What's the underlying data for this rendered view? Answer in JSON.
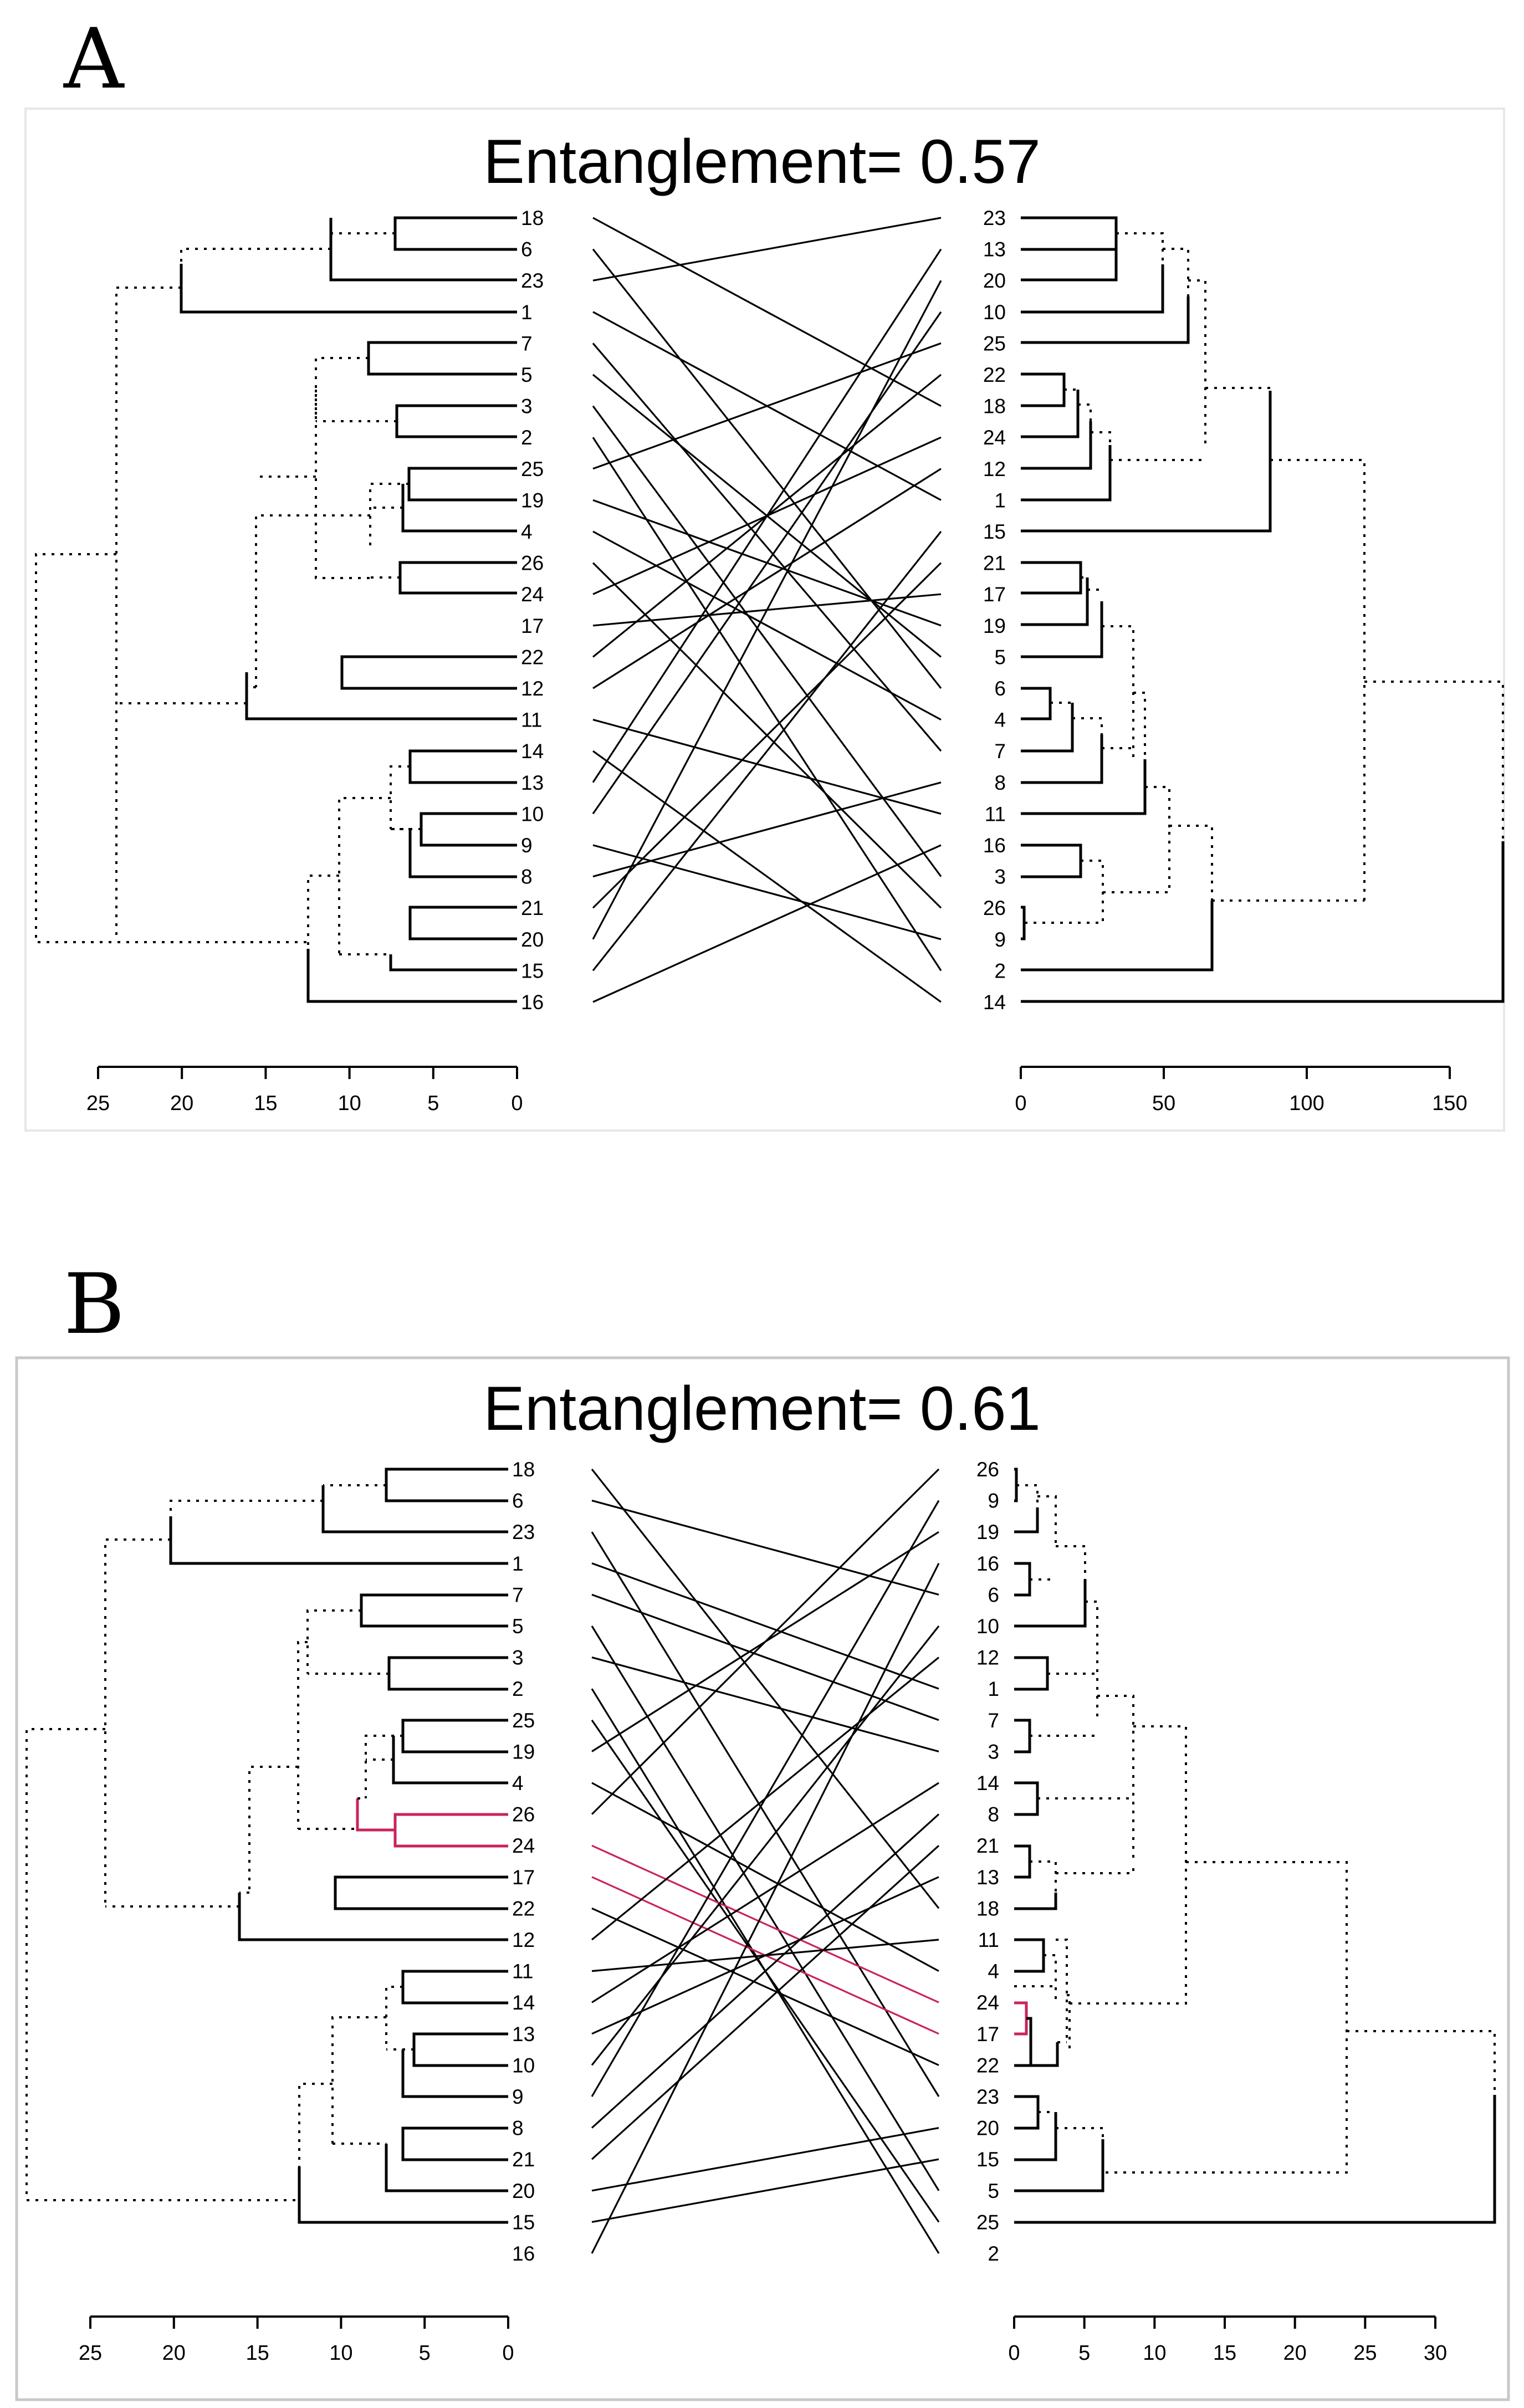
{
  "panels": [
    {
      "id": "A",
      "letter": "A",
      "title": "Entanglement= 0.57",
      "left_leaves": [
        "18",
        "6",
        "23",
        "1",
        "7",
        "5",
        "3",
        "2",
        "25",
        "19",
        "4",
        "26",
        "24",
        "17",
        "22",
        "12",
        "11",
        "14",
        "13",
        "10",
        "9",
        "8",
        "21",
        "20",
        "15",
        "16"
      ],
      "left_axis": {
        "range": [
          0,
          25
        ],
        "ticks": [
          "25",
          "20",
          "15",
          "10",
          "5",
          "0"
        ]
      },
      "right_leaves": [
        "23",
        "13",
        "20",
        "10",
        "25",
        "22",
        "18",
        "24",
        "12",
        "1",
        "15",
        "21",
        "17",
        "19",
        "5",
        "6",
        "4",
        "7",
        "8",
        "11",
        "16",
        "3",
        "26",
        "9",
        "2",
        "14"
      ],
      "right_axis": {
        "range": [
          0,
          150
        ],
        "ticks": [
          "0",
          "50",
          "100",
          "150"
        ]
      },
      "highlight": []
    },
    {
      "id": "B",
      "letter": "B",
      "title": "Entanglement= 0.61",
      "left_leaves": [
        "18",
        "6",
        "23",
        "1",
        "7",
        "5",
        "3",
        "2",
        "25",
        "19",
        "4",
        "26",
        "24",
        "17",
        "22",
        "12",
        "11",
        "14",
        "13",
        "10",
        "9",
        "8",
        "21",
        "20",
        "15",
        "16"
      ],
      "left_axis": {
        "range": [
          0,
          25
        ],
        "ticks": [
          "25",
          "20",
          "15",
          "10",
          "5",
          "0"
        ]
      },
      "right_leaves": [
        "26",
        "9",
        "19",
        "16",
        "6",
        "10",
        "12",
        "1",
        "7",
        "3",
        "14",
        "8",
        "21",
        "13",
        "18",
        "11",
        "4",
        "24",
        "17",
        "22",
        "23",
        "20",
        "15",
        "5",
        "25",
        "2"
      ],
      "right_axis": {
        "range": [
          0,
          30
        ],
        "ticks": [
          "0",
          "5",
          "10",
          "15",
          "20",
          "25",
          "30"
        ]
      },
      "highlight": [
        "24",
        "17"
      ]
    }
  ],
  "colors": {
    "line": "#000000",
    "highlight": "#c9245a",
    "frame": "#e7e7e7"
  }
}
